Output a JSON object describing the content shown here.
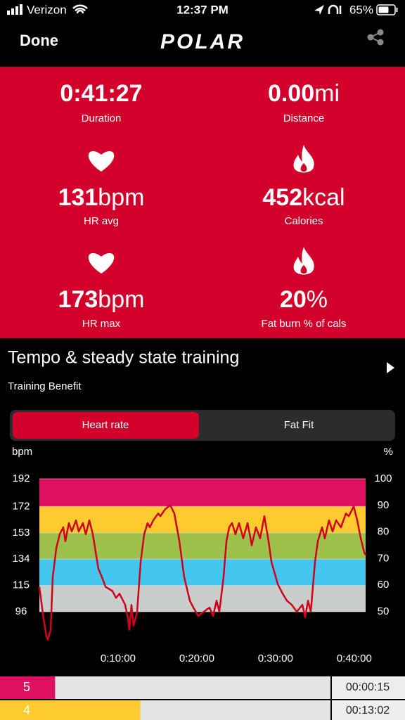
{
  "status": {
    "carrier": "Verizon",
    "time": "12:37 PM",
    "battery": "65%"
  },
  "nav": {
    "done": "Done",
    "logo": "POLAR"
  },
  "stats": [
    {
      "value": "0:41:27",
      "label": "Duration"
    },
    {
      "value": "0.00",
      "unit": "mi",
      "label": "Distance"
    },
    {
      "value": "131",
      "unit": "bpm",
      "label": "HR avg"
    },
    {
      "value": "452",
      "unit": "kcal",
      "label": "Calories"
    },
    {
      "value": "173",
      "unit": "bpm",
      "label": "HR max"
    },
    {
      "value": "20",
      "unit": "%",
      "label": "Fat burn % of cals"
    }
  ],
  "training": {
    "title": "Tempo & steady state training",
    "subtitle": "Training Benefit"
  },
  "tabs": [
    "Heart rate",
    "Fat Fit"
  ],
  "chart": {
    "type": "line",
    "y_label": "bpm",
    "y2_label": "%",
    "xlim": [
      0,
      2487
    ],
    "ylim": [
      72.96,
      192
    ],
    "y2lim": [
      38,
      100
    ],
    "xticks": [
      {
        "value": 600,
        "label": "0:10:00"
      },
      {
        "value": 1200,
        "label": "0:20:00"
      },
      {
        "value": 1800,
        "label": "0:30:00"
      },
      {
        "value": 2400,
        "label": "0:40:00"
      }
    ],
    "yticks": [
      96,
      115,
      134,
      153,
      172,
      192
    ],
    "y2ticks": [
      50,
      60,
      70,
      80,
      90,
      100
    ],
    "zone_colors": [
      "#c9cecd",
      "#45c6ee",
      "#9dc14b",
      "#fdcb2f",
      "#df1061"
    ],
    "series": [
      {
        "color": "#d0021b",
        "x": [
          0,
          32,
          54,
          64,
          86,
          102,
          129,
          155,
          182,
          198,
          225,
          247,
          279,
          300,
          332,
          354,
          381,
          407,
          450,
          477,
          504,
          557,
          584,
          611,
          654,
          675,
          686,
          702,
          718,
          745,
          772,
          799,
          825,
          842,
          868,
          906,
          922,
          959,
          997,
          1029,
          1067,
          1104,
          1147,
          1174,
          1211,
          1254,
          1297,
          1324,
          1351,
          1372,
          1404,
          1426,
          1447,
          1469,
          1495,
          1522,
          1554,
          1587,
          1619,
          1651,
          1683,
          1715,
          1747,
          1769,
          1817,
          1855,
          1887,
          1924,
          1962,
          2005,
          2026,
          2048,
          2069,
          2101,
          2123,
          2155,
          2176,
          2208,
          2235,
          2262,
          2299,
          2337,
          2358,
          2396,
          2423,
          2450,
          2476,
          2487
        ],
        "values": [
          114,
          91,
          78,
          76,
          83,
          121,
          142,
          152,
          157,
          147,
          160,
          154,
          162,
          154,
          160,
          152,
          162,
          152,
          127,
          121,
          114,
          111,
          106,
          109,
          101,
          91,
          83,
          101,
          86,
          96,
          132,
          152,
          160,
          157,
          162,
          167,
          165,
          170,
          173,
          167,
          147,
          121,
          104,
          99,
          93,
          96,
          99,
          93,
          104,
          96,
          121,
          147,
          157,
          160,
          152,
          160,
          149,
          160,
          144,
          157,
          149,
          165,
          147,
          132,
          116,
          109,
          104,
          101,
          96,
          101,
          92,
          104,
          96,
          132,
          147,
          157,
          149,
          162,
          154,
          162,
          157,
          167,
          165,
          172,
          162,
          149,
          139,
          137
        ]
      }
    ]
  },
  "zones": [
    {
      "zone": "5",
      "color": "#df1061",
      "time": "00:00:15",
      "seconds": 15
    },
    {
      "zone": "4",
      "color": "#fdcb2f",
      "time": "00:13:02",
      "seconds": 782
    }
  ]
}
